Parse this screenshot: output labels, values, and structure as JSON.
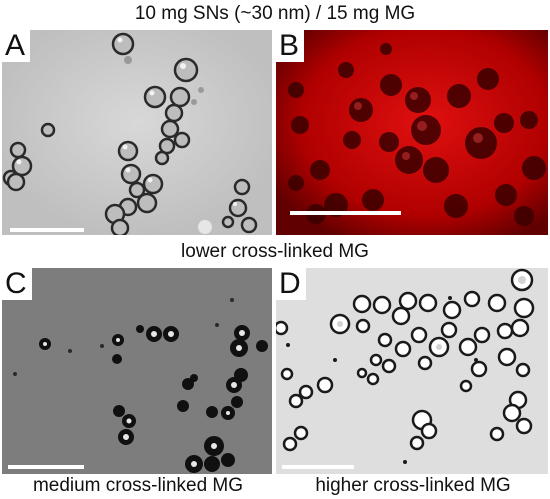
{
  "title": "10 mg SNs (~30 nm) / 15 mg MG",
  "middle_caption": "lower cross-linked MG",
  "panels": {
    "a": {
      "label": "A",
      "background": "#c9c9c9",
      "kind": "brightfield"
    },
    "b": {
      "label": "B",
      "background": "#d00000",
      "kind": "fluorescence"
    },
    "c": {
      "label": "C",
      "background": "#7d7d7d",
      "kind": "dark"
    },
    "d": {
      "label": "D",
      "background": "#e0e0e0",
      "kind": "bright"
    }
  },
  "bottom_captions": {
    "left": "medium cross-linked MG",
    "right": "higher cross-linked MG"
  }
}
